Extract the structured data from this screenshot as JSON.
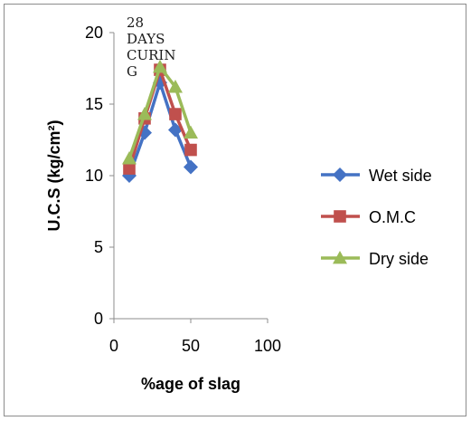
{
  "chart_data": {
    "type": "line",
    "title": "",
    "annotation": [
      "28",
      "DAYS",
      "CURIN",
      "G"
    ],
    "xlabel": "%age of slag",
    "ylabel": "U.C.S (kg/cm²)",
    "xlim": [
      0,
      100
    ],
    "ylim": [
      0,
      20
    ],
    "xticks": [
      "0",
      "50",
      "100"
    ],
    "yticks": [
      "0",
      "5",
      "10",
      "15",
      "20"
    ],
    "grid": false,
    "legend": "right",
    "series": [
      {
        "name": "Wet side",
        "color": "#4472c4",
        "marker": "diamond",
        "x": [
          10,
          20,
          30,
          40,
          50
        ],
        "y": [
          10.0,
          13.0,
          16.5,
          13.2,
          10.6
        ]
      },
      {
        "name": "O.M.C",
        "color": "#c0504d",
        "marker": "square",
        "x": [
          10,
          20,
          30,
          40,
          50
        ],
        "y": [
          10.5,
          14.0,
          17.4,
          14.3,
          11.8
        ]
      },
      {
        "name": "Dry side",
        "color": "#9bbb59",
        "marker": "triangle",
        "x": [
          10,
          20,
          30,
          40,
          50
        ],
        "y": [
          11.2,
          14.3,
          17.6,
          16.2,
          13.0
        ]
      }
    ]
  }
}
